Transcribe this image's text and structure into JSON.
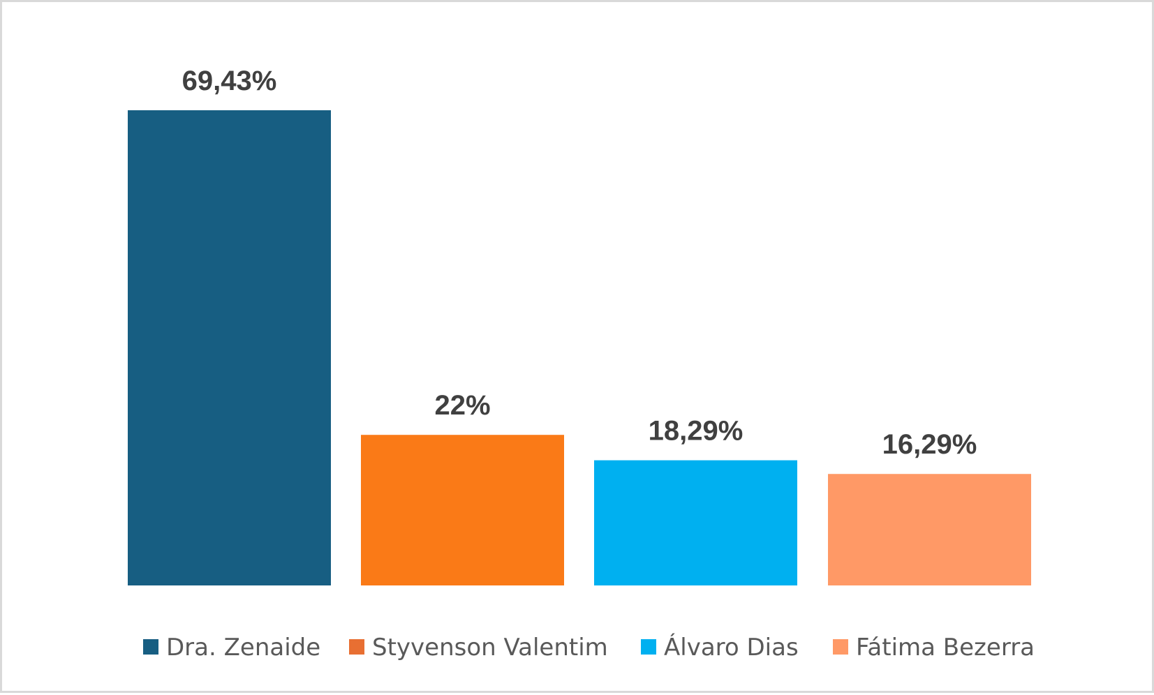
{
  "chart_data": {
    "type": "bar",
    "categories": [
      "Dra. Zenaide",
      "Styvenson Valentim",
      "Álvaro Dias",
      "Fátima Bezerra"
    ],
    "values": [
      69.43,
      22,
      18.29,
      16.29
    ],
    "data_labels": [
      "69,43%",
      "22%",
      "18,29%",
      "16,29%"
    ],
    "colors": [
      "#175e82",
      "#fa7a17",
      "#00b0f0",
      "#ff9966"
    ],
    "legend_colors": [
      "#175e82",
      "#e86f32",
      "#00b0f0",
      "#ff9966"
    ],
    "title": "",
    "xlabel": "",
    "ylabel": "",
    "ylim": [
      0,
      69.43
    ],
    "grid": false,
    "legend": "bottom"
  }
}
